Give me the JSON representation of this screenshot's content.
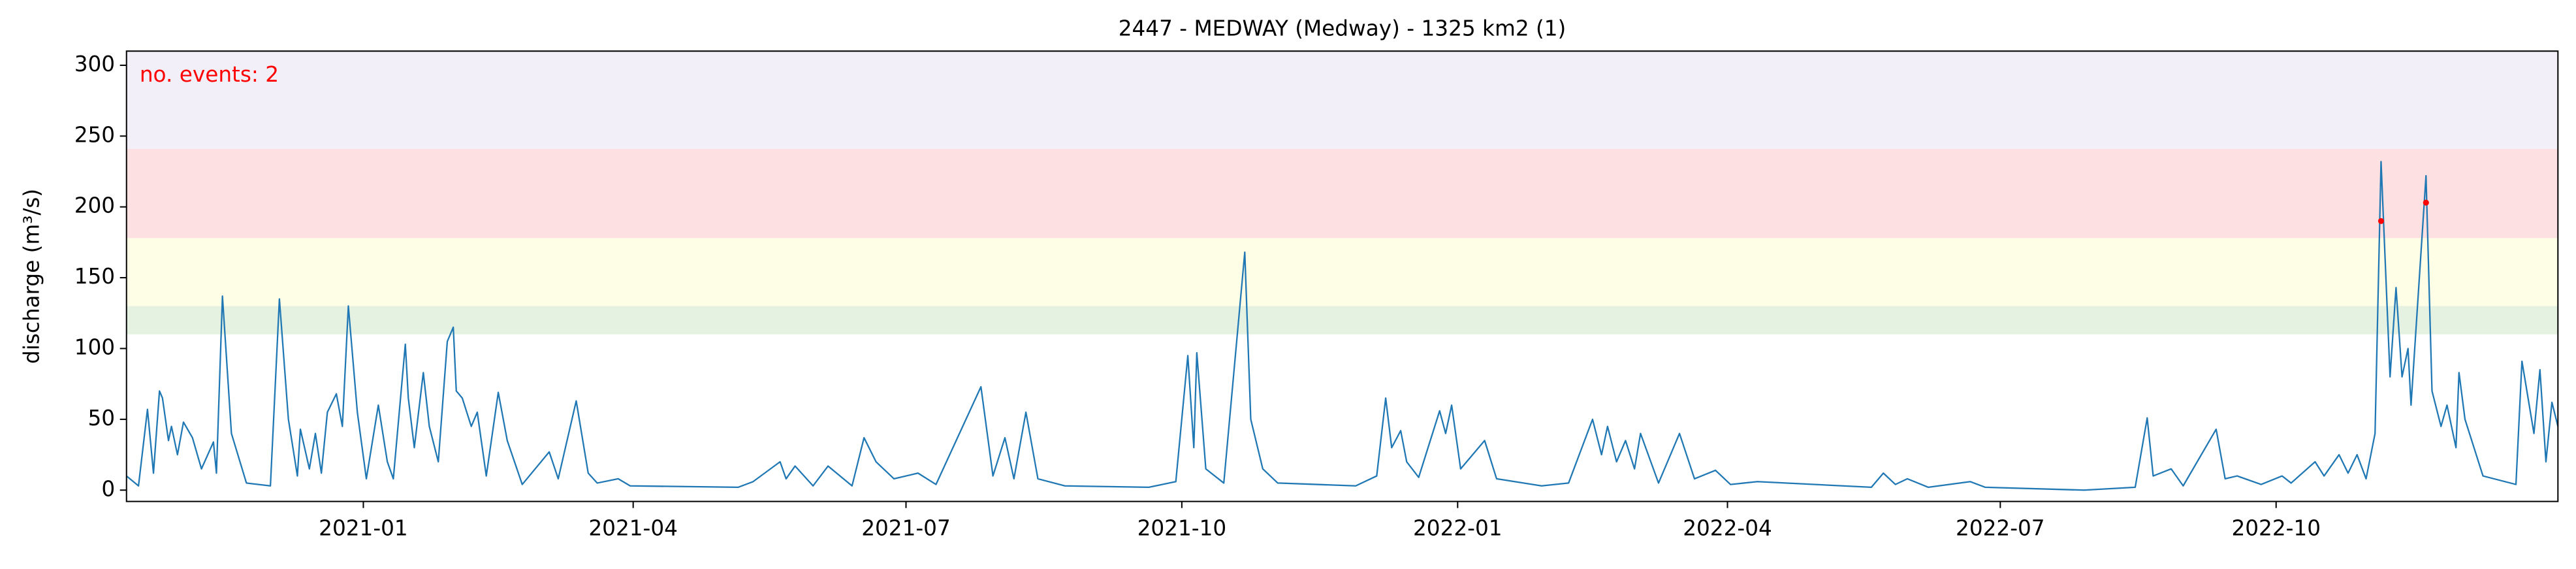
{
  "chart_data": {
    "type": "line",
    "title": "2447 - MEDWAY (Medway) - 1325 km2 (1)",
    "ylabel": "discharge (m³/s)",
    "annotation": "no. events: 2",
    "annotation_color": "#ff0000",
    "xlim": [
      "2020-10-14",
      "2023-01-03"
    ],
    "xticks": [
      "2021-01",
      "2021-04",
      "2021-07",
      "2021-10",
      "2022-01",
      "2022-04",
      "2022-07",
      "2022-10"
    ],
    "ylim": [
      -8,
      310
    ],
    "yticks": [
      0,
      50,
      100,
      150,
      200,
      250,
      300
    ],
    "bands": [
      {
        "from": 110,
        "to": 130,
        "color": "#e5f1e1"
      },
      {
        "from": 130,
        "to": 178,
        "color": "#fefde5"
      },
      {
        "from": 178,
        "to": 241,
        "color": "#fde0e1"
      },
      {
        "from": 241,
        "to": 310,
        "color": "#f2eff9"
      }
    ],
    "x": [
      "2020-10-14",
      "2020-10-18",
      "2020-10-21",
      "2020-10-23",
      "2020-10-25",
      "2020-10-26",
      "2020-10-28",
      "2020-10-29",
      "2020-10-31",
      "2020-11-02",
      "2020-11-05",
      "2020-11-08",
      "2020-11-12",
      "2020-11-13",
      "2020-11-15",
      "2020-11-18",
      "2020-11-23",
      "2020-12-01",
      "2020-12-04",
      "2020-12-07",
      "2020-12-10",
      "2020-12-11",
      "2020-12-14",
      "2020-12-16",
      "2020-12-18",
      "2020-12-20",
      "2020-12-23",
      "2020-12-25",
      "2020-12-27",
      "2020-12-30",
      "2021-01-02",
      "2021-01-06",
      "2021-01-09",
      "2021-01-11",
      "2021-01-15",
      "2021-01-16",
      "2021-01-18",
      "2021-01-21",
      "2021-01-23",
      "2021-01-26",
      "2021-01-29",
      "2021-01-31",
      "2021-02-01",
      "2021-02-03",
      "2021-02-06",
      "2021-02-08",
      "2021-02-11",
      "2021-02-15",
      "2021-02-18",
      "2021-02-23",
      "2021-03-04",
      "2021-03-07",
      "2021-03-13",
      "2021-03-17",
      "2021-03-20",
      "2021-03-27",
      "2021-03-31",
      "2021-05-06",
      "2021-05-11",
      "2021-05-20",
      "2021-05-22",
      "2021-05-25",
      "2021-05-31",
      "2021-06-05",
      "2021-06-13",
      "2021-06-17",
      "2021-06-21",
      "2021-06-27",
      "2021-07-05",
      "2021-07-11",
      "2021-07-26",
      "2021-07-30",
      "2021-08-03",
      "2021-08-06",
      "2021-08-10",
      "2021-08-14",
      "2021-08-23",
      "2021-09-20",
      "2021-09-29",
      "2021-10-03",
      "2021-10-05",
      "2021-10-06",
      "2021-10-09",
      "2021-10-15",
      "2021-10-22",
      "2021-10-24",
      "2021-10-28",
      "2021-11-02",
      "2021-11-28",
      "2021-12-05",
      "2021-12-08",
      "2021-12-10",
      "2021-12-13",
      "2021-12-15",
      "2021-12-19",
      "2021-12-26",
      "2021-12-28",
      "2021-12-30",
      "2022-01-02",
      "2022-01-10",
      "2022-01-14",
      "2022-01-29",
      "2022-02-07",
      "2022-02-15",
      "2022-02-18",
      "2022-02-20",
      "2022-02-23",
      "2022-02-26",
      "2022-03-01",
      "2022-03-03",
      "2022-03-09",
      "2022-03-16",
      "2022-03-21",
      "2022-03-28",
      "2022-04-02",
      "2022-04-11",
      "2022-05-19",
      "2022-05-23",
      "2022-05-27",
      "2022-05-31",
      "2022-06-07",
      "2022-06-21",
      "2022-06-26",
      "2022-07-29",
      "2022-08-15",
      "2022-08-19",
      "2022-08-21",
      "2022-08-27",
      "2022-08-31",
      "2022-09-11",
      "2022-09-14",
      "2022-09-18",
      "2022-09-26",
      "2022-10-03",
      "2022-10-06",
      "2022-10-14",
      "2022-10-17",
      "2022-10-22",
      "2022-10-25",
      "2022-10-28",
      "2022-10-31",
      "2022-11-03",
      "2022-11-05",
      "2022-11-08",
      "2022-11-10",
      "2022-11-12",
      "2022-11-14",
      "2022-11-15",
      "2022-11-20",
      "2022-11-22",
      "2022-11-25",
      "2022-11-27",
      "2022-11-30",
      "2022-12-01",
      "2022-12-03",
      "2022-12-09",
      "2022-12-20",
      "2022-12-22",
      "2022-12-26",
      "2022-12-28",
      "2022-12-30",
      "2023-01-01",
      "2023-01-03"
    ],
    "series": [
      {
        "color": "#1f77b4",
        "values": [
          10,
          3,
          57,
          12,
          70,
          65,
          35,
          45,
          25,
          48,
          37,
          15,
          34,
          12,
          137,
          40,
          5,
          3,
          135,
          50,
          10,
          43,
          15,
          40,
          12,
          55,
          68,
          45,
          130,
          55,
          8,
          60,
          20,
          8,
          103,
          65,
          30,
          83,
          45,
          20,
          105,
          115,
          70,
          65,
          45,
          55,
          10,
          69,
          35,
          4,
          27,
          8,
          63,
          12,
          5,
          8,
          3,
          2,
          6,
          20,
          8,
          17,
          3,
          17,
          3,
          37,
          20,
          8,
          12,
          4,
          73,
          10,
          37,
          8,
          55,
          8,
          3,
          2,
          6,
          95,
          30,
          97,
          15,
          5,
          168,
          50,
          15,
          5,
          3,
          10,
          65,
          30,
          42,
          20,
          9,
          56,
          40,
          60,
          15,
          35,
          8,
          3,
          5,
          50,
          25,
          45,
          20,
          35,
          15,
          40,
          5,
          40,
          8,
          14,
          4,
          6,
          2,
          12,
          4,
          8,
          2,
          6,
          2,
          0,
          2,
          51,
          10,
          15,
          3,
          43,
          8,
          10,
          4,
          10,
          5,
          20,
          10,
          25,
          12,
          25,
          8,
          40,
          232,
          80,
          143,
          80,
          100,
          60,
          222,
          70,
          45,
          60,
          30,
          83,
          50,
          10,
          4,
          91,
          40,
          85,
          20,
          62,
          45
        ]
      }
    ],
    "events": {
      "color": "#ff0000",
      "x": [
        "2022-11-05",
        "2022-11-20"
      ],
      "values": [
        190,
        203
      ]
    }
  }
}
